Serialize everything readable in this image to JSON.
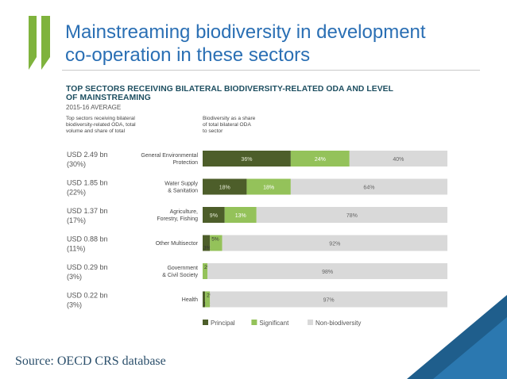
{
  "slide": {
    "title_line1": "Mainstreaming biodiversity in development",
    "title_line2": "co-operation in these sectors",
    "source": "Source: OECD CRS database"
  },
  "chart_data": {
    "type": "bar",
    "stacked": true,
    "orientation": "horizontal",
    "title_line1": "TOP SECTORS RECEIVING BILATERAL BIODIVERSITY-RELATED ODA AND LEVEL",
    "title_line2": "OF MAINSTREAMING",
    "subtitle": "2015-16 AVERAGE",
    "left_header": [
      "Top sectors receiving bilateral",
      "biodiversity-related ODA, total",
      "volume and share of total"
    ],
    "right_header": [
      "Biodiversity as a share",
      "of total bilateral ODA",
      "to sector"
    ],
    "categories": [
      [
        "General Environmental",
        "Protection"
      ],
      [
        "Water Supply",
        "& Sanitation"
      ],
      [
        "Agriculture,",
        "Forestry, Fishing"
      ],
      [
        "Other Multisector"
      ],
      [
        "Government",
        "& Civil Society"
      ],
      [
        "Health"
      ]
    ],
    "volumes": [
      "USD 2.49 bn",
      "USD 1.85 bn",
      "USD 1.37 bn",
      "USD 0.88 bn",
      "USD 0.29 bn",
      "USD 0.22 bn"
    ],
    "shares": [
      "(30%)",
      "(22%)",
      "(17%)",
      "(11%)",
      "(3%)",
      "(3%)"
    ],
    "series": [
      {
        "name": "Principal",
        "color": "#4d5e2a",
        "values": [
          36,
          18,
          9,
          3,
          0,
          1
        ]
      },
      {
        "name": "Significant",
        "color": "#94c25a",
        "values": [
          24,
          18,
          13,
          5,
          2,
          2
        ]
      },
      {
        "name": "Non-biodiversity",
        "color": "#d9d9d9",
        "values": [
          40,
          64,
          78,
          92,
          98,
          97
        ]
      }
    ],
    "xlim": [
      0,
      100
    ]
  }
}
